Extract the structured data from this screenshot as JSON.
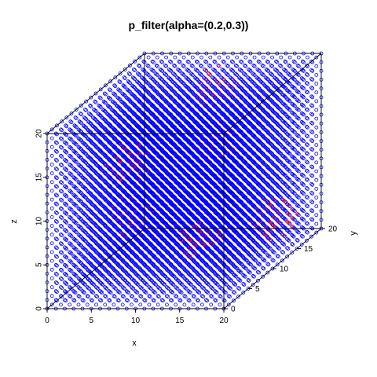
{
  "chart_data": {
    "type": "scatter",
    "title": "p_filter(alpha=(0.2,0.3))",
    "xlabel": "x",
    "ylabel": "y",
    "zlabel": "z",
    "xlim": [
      0,
      20
    ],
    "ylim": [
      0,
      20
    ],
    "zlim": [
      0,
      20
    ],
    "x_ticks": [
      "0",
      "5",
      "10",
      "15",
      "20"
    ],
    "y_ticks": [
      "0",
      "5",
      "10",
      "15",
      "20"
    ],
    "z_ticks": [
      "0",
      "5",
      "10",
      "15",
      "20"
    ],
    "grid": false,
    "box": true,
    "series": [
      {
        "color": "#0000ff",
        "marker": "open-circle",
        "grid_points": "integer lattice 0..20 on x, y, z"
      },
      {
        "color": "#ff0000",
        "marker": "open-circle",
        "clusters": [
          {
            "x": 6,
            "y": 6,
            "z": 14
          },
          {
            "x": 11,
            "y": 15,
            "z": 12
          },
          {
            "x": 15,
            "y": 4,
            "z": 6
          },
          {
            "x": 18,
            "y": 14,
            "z": 4
          },
          {
            "x": 9,
            "y": 18,
            "z": 17
          },
          {
            "x": 4,
            "y": 10,
            "z": 6
          }
        ]
      }
    ],
    "colors": {
      "primary": "#0000ff",
      "highlight": "#ff0000"
    }
  }
}
